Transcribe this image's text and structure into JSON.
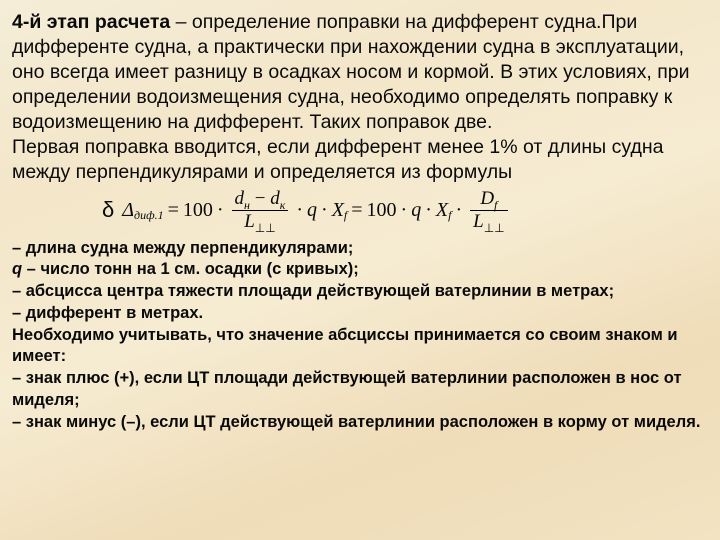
{
  "para": {
    "strong": "4-й этап расчета",
    "body": " – определение поправки на дифферент судна.При дифференте судна, а практически при нахождении судна в эксплуатации, оно всегда имеет разницу в осадках носом и кормой. В этих условиях, при определении водоизмещения судна, необходимо определять поправку к водоизмещению на дифферент. Таких поправок две.",
    "second": "Первая поправка вводится, если дифферент менее 1% от длины судна между перпендикулярами и определяется из формулы"
  },
  "formula": {
    "delta_label": "δ",
    "Delta": "Δ",
    "Delta_sub": "диф.1",
    "eq": "=",
    "n100": "100",
    "dot": "·",
    "d_n": "d",
    "d_n_sub": "н",
    "minus": "−",
    "d_k": "d",
    "d_k_sub": "к",
    "L": "L",
    "L_sub": "⊥⊥",
    "q": "q",
    "X": "X",
    "X_sub": "f",
    "D": "D",
    "D_sub": "f"
  },
  "defs": {
    "l1": " – длина судна между перпендикулярами;",
    "q_sym": "q",
    "l2": "      – число тонн на 1 см. осадки (с кривых);",
    "l3": " – абсцисса центра тяжести площади действующей ватерлинии в метрах;",
    "l4": " – дифферент в метрах.",
    "l5": "Необходимо учитывать, что значение абсциссы принимается со своим знаком и имеет:",
    "l6": "– знак плюс (+), если ЦТ площади действующей ватерлинии расположен в нос от миделя;",
    "l7": "– знак минус (–), если ЦТ действующей ватерлинии расположен в корму от миделя."
  },
  "style": {
    "text_color": "#0a0a0a"
  }
}
